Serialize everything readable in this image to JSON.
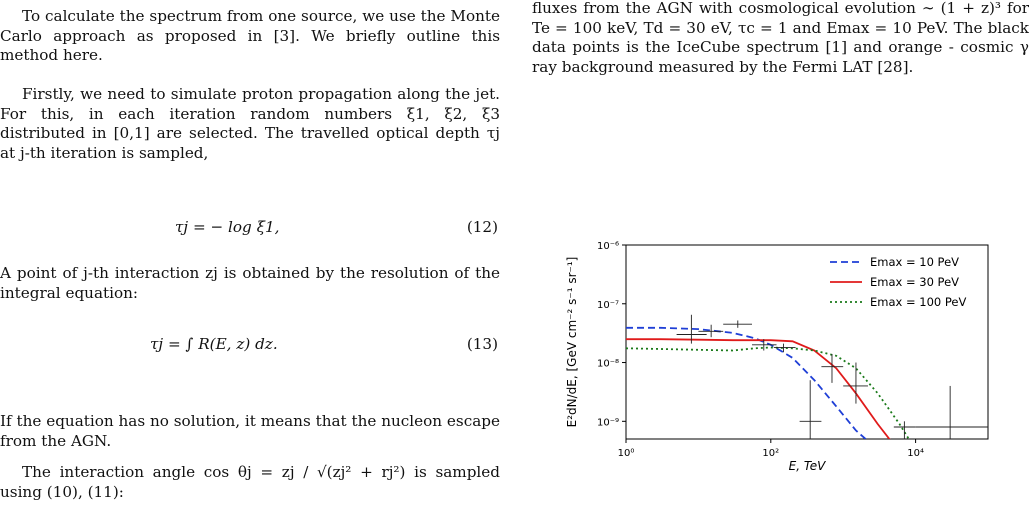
{
  "left": {
    "p1": "To calculate the spectrum from one source, we use the Monte Carlo approach as proposed in [3]. We briefly outline this method here.",
    "p2": "Firstly, we need to simulate proton propagation along the jet. For this, in each iteration random numbers ξ1, ξ2, ξ3 distributed in [0,1] are selected. The travelled optical depth τj at j-th iteration is sampled,",
    "eq12": "τj = − log ξ1,",
    "eq12_num": "(12)",
    "p3": "A point of j-th interaction zj is obtained by the resolution of the integral equation:",
    "eq13": "τj = ∫ R(E, z) dz.",
    "eq13_num": "(13)",
    "p4": "If the equation has no solution, it means that the nucleon escape from the AGN.",
    "p5": "The interaction angle cos θj = zj / √(zj² + rj²) is sampled using (10), (11):"
  },
  "right": {
    "caption": "fluxes from the AGN with cosmological evolution ∼ (1 + z)³ for Te = 100 keV, Td = 30 eV, τc = 1 and Emax = 10 PeV. The black data points is the IceCube spectrum [1] and orange - cosmic γ ray background measured by the Fermi LAT [28]."
  },
  "chart_data": {
    "type": "line",
    "xlabel": "E, TeV",
    "ylabel": "E²dN/dE, [GeV cm⁻² s⁻¹ sr⁻¹]",
    "xscale": "log",
    "yscale": "log",
    "xlim": [
      1,
      100000
    ],
    "ylim": [
      5e-10,
      1e-06
    ],
    "x_ticks": [
      "10⁰",
      "10²",
      "10⁴"
    ],
    "y_ticks": [
      "10⁻⁶",
      "10⁻⁷",
      "10⁻⁸",
      "10⁻⁹"
    ],
    "legend_position": "top-right",
    "series": [
      {
        "name": "Emax = 10 PeV",
        "color": "#1f3fd6",
        "style": "dashed",
        "x": [
          1,
          3,
          10,
          30,
          60,
          100,
          200,
          400,
          800,
          1500,
          2500
        ],
        "y": [
          3.9e-08,
          3.9e-08,
          3.7e-08,
          3.2e-08,
          2.6e-08,
          2e-08,
          1.2e-08,
          5e-09,
          1.8e-09,
          7e-10,
          4e-10
        ]
      },
      {
        "name": "Emax = 30 PeV",
        "color": "#e01b1b",
        "style": "solid",
        "x": [
          1,
          3,
          10,
          30,
          60,
          100,
          200,
          400,
          800,
          1500,
          3000,
          5000
        ],
        "y": [
          2.5e-08,
          2.5e-08,
          2.45e-08,
          2.4e-08,
          2.4e-08,
          2.4e-08,
          2.3e-08,
          1.6e-08,
          8e-09,
          3e-09,
          9e-10,
          4e-10
        ]
      },
      {
        "name": "Emax = 100 PeV",
        "color": "#1a7a1a",
        "style": "dotted",
        "x": [
          1,
          3,
          10,
          30,
          60,
          100,
          200,
          400,
          800,
          1500,
          3000,
          6000,
          9000
        ],
        "y": [
          1.75e-08,
          1.7e-08,
          1.65e-08,
          1.6e-08,
          1.75e-08,
          1.8e-08,
          1.75e-08,
          1.6e-08,
          1.3e-08,
          8e-09,
          3e-09,
          9e-10,
          4e-10
        ]
      }
    ],
    "data_points": [
      {
        "x": 8,
        "y": 3e-08,
        "xerr": [
          5,
          13
        ],
        "yerr": [
          2.1e-08,
          6.5e-08
        ]
      },
      {
        "x": 15,
        "y": 3.4e-08,
        "xerr": [
          10,
          22
        ],
        "yerr": [
          2.7e-08,
          4.4e-08
        ]
      },
      {
        "x": 35,
        "y": 4.5e-08,
        "xerr": [
          22,
          55
        ],
        "yerr": [
          3.9e-08,
          5.2e-08
        ]
      },
      {
        "x": 80,
        "y": 2e-08,
        "xerr": [
          55,
          120
        ],
        "yerr": [
          1.6e-08,
          2.5e-08
        ]
      },
      {
        "x": 150,
        "y": 1.8e-08,
        "xerr": [
          110,
          220
        ],
        "yerr": [
          1.5e-08,
          2.1e-08
        ]
      },
      {
        "x": 350,
        "y": 1e-09,
        "xerr": [
          250,
          500
        ],
        "yerr": [
          5e-10,
          5e-09
        ]
      },
      {
        "x": 700,
        "y": 8.5e-09,
        "xerr": [
          500,
          1000
        ],
        "yerr": [
          4.5e-09,
          1.4e-08
        ]
      },
      {
        "x": 1500,
        "y": 4e-09,
        "xerr": [
          1000,
          2200
        ],
        "yerr": [
          2e-09,
          1e-08
        ]
      },
      {
        "x": 7000,
        "y": 8e-10,
        "xerr": [
          5000,
          10000
        ],
        "yerr": [
          5e-10,
          1e-09
        ]
      },
      {
        "x": 30000,
        "y": 8e-10,
        "xerr": [
          10000,
          100000
        ],
        "yerr": [
          5e-10,
          4e-09
        ]
      }
    ]
  }
}
